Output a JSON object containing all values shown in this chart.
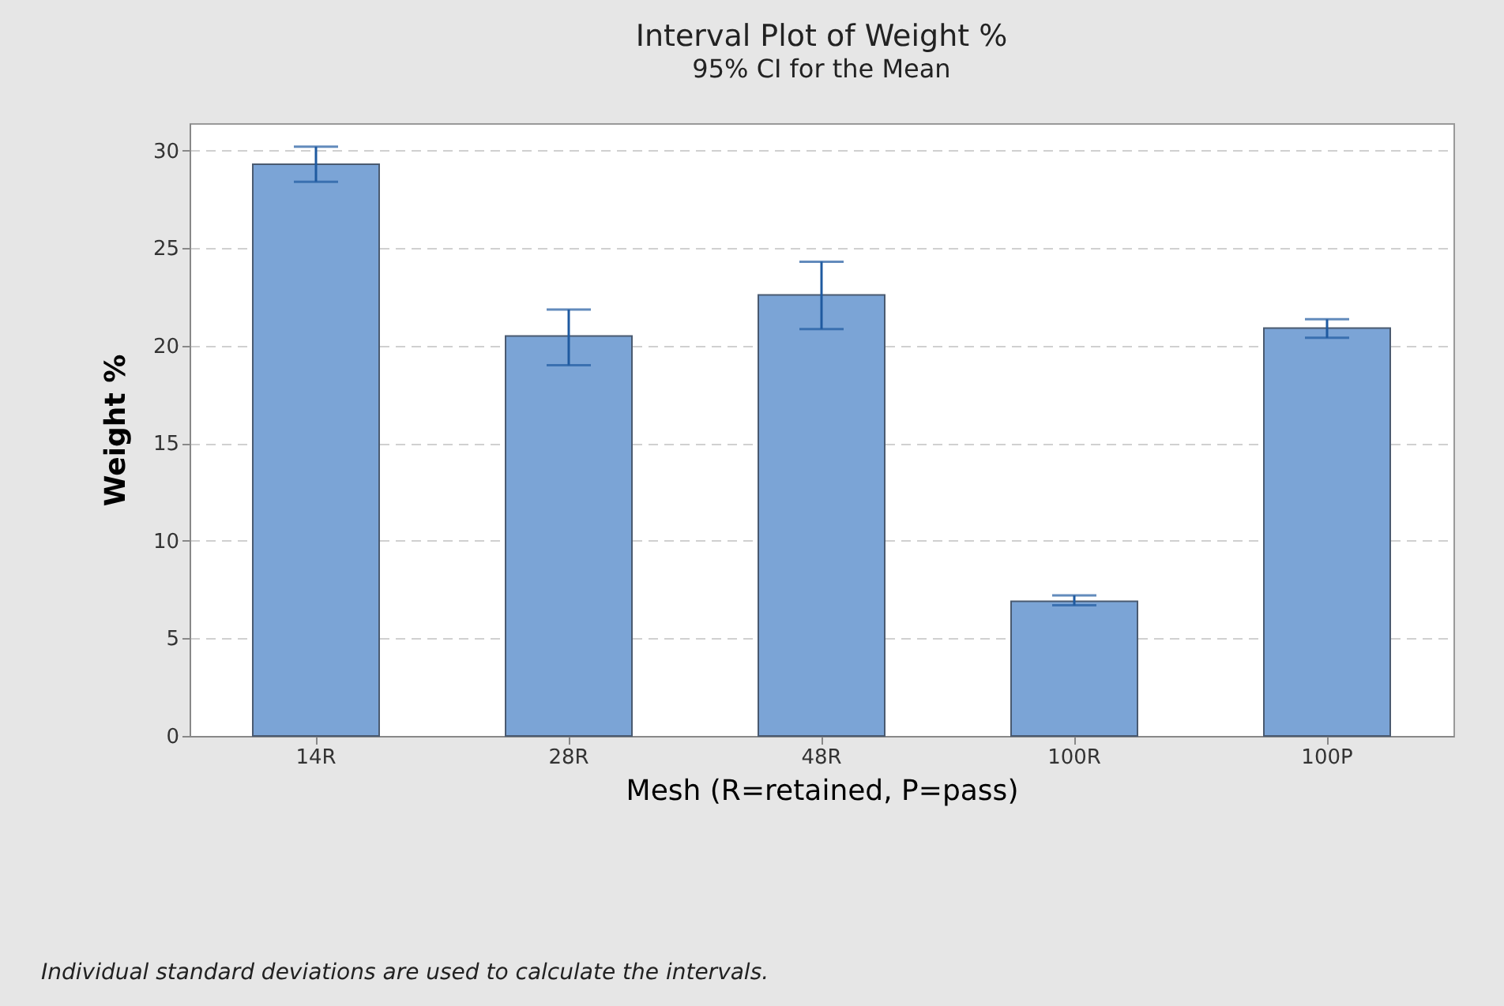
{
  "chart_data": {
    "type": "bar",
    "title": "Interval Plot of Weight %",
    "subtitle": "95% CI for the Mean",
    "xlabel": "Mesh (R=retained, P=pass)",
    "ylabel": "Weight %",
    "categories": [
      "14R",
      "28R",
      "48R",
      "100R",
      "100P"
    ],
    "values": [
      29.3,
      20.5,
      22.6,
      6.9,
      20.9
    ],
    "errors": [
      [
        28.4,
        30.2
      ],
      [
        19.0,
        21.85
      ],
      [
        20.85,
        24.3
      ],
      [
        6.7,
        7.2
      ],
      [
        20.4,
        21.35
      ]
    ],
    "color": "#7ba4d6",
    "ylim": [
      0,
      31.4
    ],
    "yticks": [
      0,
      5,
      10,
      15,
      20,
      25,
      30
    ],
    "grid": "y",
    "annotations": [
      "Individual standard deviations are used to calculate the intervals."
    ]
  }
}
